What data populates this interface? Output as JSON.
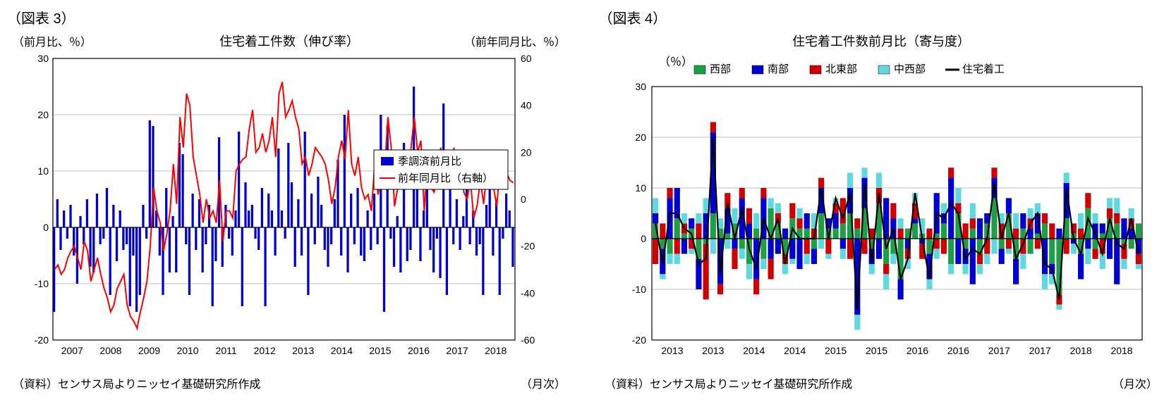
{
  "chart3": {
    "figure_label": "（図表 3）",
    "title": "住宅着工件数（伸び率）",
    "y_left_label": "（前月比、％）",
    "y_right_label": "（前年同月比、％）",
    "x_label": "（月次）",
    "source": "（資料）センサス局よりニッセイ基礎研究所作成",
    "colors": {
      "bar": "#0000d0",
      "line": "#ff0000",
      "grid": "#bfbfbf",
      "axis": "#000000",
      "bg": "#ffffff"
    },
    "font_sizes": {
      "title": 18,
      "label": 16,
      "tick": 14,
      "legend": 15
    },
    "legend": {
      "items": [
        {
          "label": "季調済前月比",
          "type": "bar",
          "color": "#0000d0"
        },
        {
          "label": "前年同月比（右軸）",
          "type": "line",
          "color": "#ff0000"
        }
      ]
    },
    "y_left": {
      "min": -20,
      "max": 30,
      "step": 10
    },
    "y_right": {
      "min": -60,
      "max": 60,
      "step": 20
    },
    "x_ticks": [
      "2007",
      "2008",
      "2009",
      "2010",
      "2011",
      "2012",
      "2013",
      "2014",
      "2015",
      "2016",
      "2017",
      "2018"
    ],
    "bars": [
      -15,
      5,
      -4,
      3,
      -2,
      4,
      -5,
      -10,
      2,
      -3,
      5,
      -7,
      -8,
      6,
      -3,
      -2,
      7,
      -12,
      4,
      -6,
      3,
      -4,
      -3,
      -14,
      -5,
      -15,
      -12,
      4,
      -2,
      19,
      18,
      3,
      -5,
      -12,
      7,
      -8,
      2,
      -8,
      15,
      13,
      -3,
      -12,
      6,
      -4,
      5,
      -8,
      -3,
      4,
      -14,
      -6,
      16,
      -7,
      4,
      -2,
      -5,
      3,
      17,
      -14,
      8,
      3,
      4,
      -2,
      -4,
      7,
      -14,
      6,
      3,
      -5,
      14,
      3,
      -2,
      15,
      8,
      -7,
      5,
      -5,
      17,
      -12,
      6,
      -3,
      9,
      4,
      -4,
      -7,
      -3,
      5,
      12,
      -5,
      20,
      -8,
      6,
      -3,
      7,
      -5,
      -6,
      3,
      -4,
      6,
      -3,
      20,
      -15,
      18,
      -2,
      -7,
      2,
      -8,
      15,
      -6,
      -4,
      25,
      7,
      -6,
      3,
      7,
      -4,
      -8,
      -2,
      -9,
      22,
      -12,
      7,
      -3,
      5,
      -4,
      2,
      8,
      -3,
      3,
      -5,
      -3,
      -12,
      4,
      7,
      -5,
      5,
      -12,
      -2,
      6,
      3,
      -7
    ],
    "line": [
      -30,
      -28,
      -32,
      -30,
      -25,
      -22,
      -20,
      -25,
      -30,
      -18,
      -22,
      -35,
      -30,
      -25,
      -32,
      -38,
      -42,
      -48,
      -45,
      -38,
      -35,
      -32,
      -45,
      -50,
      -52,
      -55,
      -48,
      -42,
      -35,
      -20,
      5,
      -5,
      -10,
      -22,
      -15,
      -5,
      15,
      -2,
      35,
      22,
      45,
      40,
      18,
      10,
      2,
      -10,
      0,
      -8,
      -5,
      -10,
      8,
      -18,
      -5,
      -5,
      -8,
      12,
      15,
      17,
      18,
      30,
      38,
      20,
      22,
      28,
      20,
      25,
      35,
      18,
      45,
      50,
      35,
      38,
      42,
      35,
      30,
      15,
      18,
      10,
      15,
      22,
      20,
      18,
      15,
      8,
      -2,
      5,
      18,
      25,
      17,
      38,
      15,
      10,
      18,
      5,
      0,
      2,
      -5,
      15,
      2,
      10,
      12,
      35,
      22,
      -3,
      5,
      12,
      18,
      8,
      22,
      35,
      20,
      25,
      -5,
      17,
      5,
      3,
      10,
      22,
      15,
      20,
      4,
      22,
      10,
      18,
      3,
      0,
      8,
      -8,
      -3,
      8,
      -2,
      12,
      18,
      5,
      -3,
      15,
      5,
      11,
      8,
      7
    ]
  },
  "chart4": {
    "figure_label": "（図表 4）",
    "title": "住宅着工件数前月比（寄与度）",
    "y_label": "（％）",
    "x_label": "（月次）",
    "source": "（資料）センサス局よりニッセイ基礎研究所作成",
    "colors": {
      "west": "#1f9e48",
      "south": "#0000d0",
      "northeast": "#d00000",
      "midwest": "#60d8e0",
      "total_line": "#000000",
      "grid": "#bfbfbf",
      "bg": "#ffffff"
    },
    "font_sizes": {
      "title": 18,
      "label": 16,
      "tick": 14,
      "legend": 15
    },
    "legend": {
      "items": [
        {
          "label": "西部",
          "type": "bar",
          "color": "#1f9e48"
        },
        {
          "label": "南部",
          "type": "bar",
          "color": "#0000d0"
        },
        {
          "label": "北東部",
          "type": "bar",
          "color": "#d00000"
        },
        {
          "label": "中西部",
          "type": "bar",
          "color": "#60d8e0"
        },
        {
          "label": "住宅着工",
          "type": "line",
          "color": "#000000"
        }
      ]
    },
    "y": {
      "min": -20,
      "max": 30,
      "step": 10
    },
    "x_ticks": [
      "2013",
      "2013",
      "2014",
      "2014",
      "2015",
      "2015",
      "2016",
      "2016",
      "2017",
      "2017",
      "2018",
      "2018"
    ],
    "series": {
      "west": [
        3,
        -2,
        -3,
        4,
        1,
        2,
        -4,
        -1,
        5,
        2,
        1,
        3,
        -2,
        -5,
        2,
        -4,
        6,
        3,
        -3,
        4,
        2,
        2,
        -2,
        5,
        2,
        2,
        3,
        5,
        2,
        6,
        -2,
        7,
        -5,
        -3,
        -8,
        2,
        3,
        1,
        -3,
        1,
        3,
        -5,
        5,
        -2,
        2,
        -3,
        3,
        8,
        -2,
        5,
        -4,
        2,
        -3,
        1,
        3,
        -5,
        -11,
        4,
        1,
        -3,
        6,
        -2,
        1,
        4,
        3,
        -1,
        -2,
        3
      ],
      "south": [
        2,
        -5,
        8,
        6,
        -3,
        2,
        -6,
        5,
        16,
        -9,
        5,
        -2,
        8,
        3,
        -8,
        8,
        -4,
        -3,
        2,
        -4,
        -6,
        3,
        -3,
        5,
        2,
        3,
        -2,
        5,
        -15,
        6,
        -3,
        -4,
        8,
        4,
        -4,
        -2,
        1,
        -1,
        -5,
        8,
        2,
        12,
        -5,
        -3,
        -9,
        4,
        2,
        4,
        -3,
        3,
        -5,
        3,
        2,
        4,
        -7,
        -2,
        2,
        7,
        -1,
        -5,
        -2,
        3,
        2,
        -4,
        -9,
        4,
        2,
        -3
      ],
      "northeast": [
        -5,
        3,
        2,
        -3,
        2,
        -2,
        3,
        -11,
        2,
        -2,
        3,
        -4,
        2,
        3,
        -3,
        2,
        -4,
        2,
        -2,
        3,
        2,
        -3,
        2,
        2,
        -3,
        2,
        5,
        -4,
        2,
        -3,
        2,
        3,
        -2,
        3,
        2,
        -2,
        3,
        -3,
        2,
        -2,
        -3,
        2,
        2,
        3,
        2,
        -2,
        -3,
        2,
        3,
        -2,
        2,
        -3,
        2,
        -2,
        2,
        3,
        -2,
        -3,
        2,
        2,
        3,
        -2,
        -3,
        2,
        2,
        -3,
        2,
        -2
      ],
      "midwest": [
        3,
        -1,
        -2,
        -2,
        2,
        -1,
        2,
        3,
        -3,
        2,
        -2,
        3,
        -2,
        -3,
        3,
        -2,
        2,
        2,
        -2,
        -1,
        2,
        -2,
        3,
        -2,
        -1,
        1,
        -2,
        3,
        -3,
        2,
        -2,
        3,
        -3,
        -2,
        2,
        -2,
        2,
        3,
        -2,
        -2,
        2,
        -2,
        3,
        -2,
        3,
        -2,
        -2,
        -3,
        2,
        -1,
        3,
        -3,
        2,
        2,
        -3,
        -2,
        -1,
        2,
        -2,
        3,
        -3,
        2,
        -3,
        2,
        3,
        -2,
        2,
        -1
      ]
    },
    "total": [
      3,
      -5,
      5,
      5,
      2,
      1,
      -5,
      -4,
      20,
      -7,
      7,
      0,
      6,
      -2,
      -6,
      4,
      0,
      4,
      -5,
      2,
      0,
      0,
      0,
      10,
      0,
      8,
      4,
      9,
      -14,
      11,
      -5,
      9,
      -2,
      2,
      -8,
      -4,
      9,
      0,
      -8,
      5,
      4,
      7,
      5,
      -4,
      -2,
      -3,
      0,
      11,
      0,
      5,
      -4,
      -1,
      3,
      5,
      -5,
      -6,
      -12,
      10,
      0,
      -3,
      4,
      1,
      -3,
      4,
      -1,
      -2,
      4,
      -3
    ]
  }
}
